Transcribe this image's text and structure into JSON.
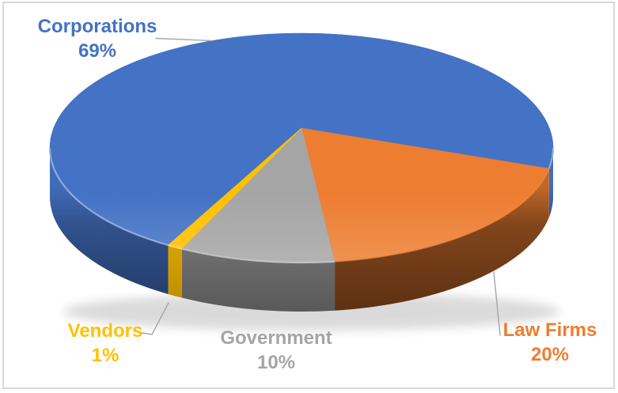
{
  "chart_data": {
    "type": "pie",
    "style": "3d",
    "direction": "clockwise",
    "start_angle_deg": 212,
    "legend": "none",
    "data_label_style": "category name + percentage, outside slices with leader lines",
    "leader_line_color": "#A6A6A6",
    "slices": [
      {
        "label": "Corporations",
        "value": 69,
        "percent_label": "69%",
        "color": "#4472C4"
      },
      {
        "label": "Law Firms",
        "value": 20,
        "percent_label": "20%",
        "color": "#ED7D31"
      },
      {
        "label": "Government",
        "value": 10,
        "percent_label": "10%",
        "color": "#A5A5A5"
      },
      {
        "label": "Vendors",
        "value": 1,
        "percent_label": "1%",
        "color": "#FFC000"
      }
    ]
  }
}
